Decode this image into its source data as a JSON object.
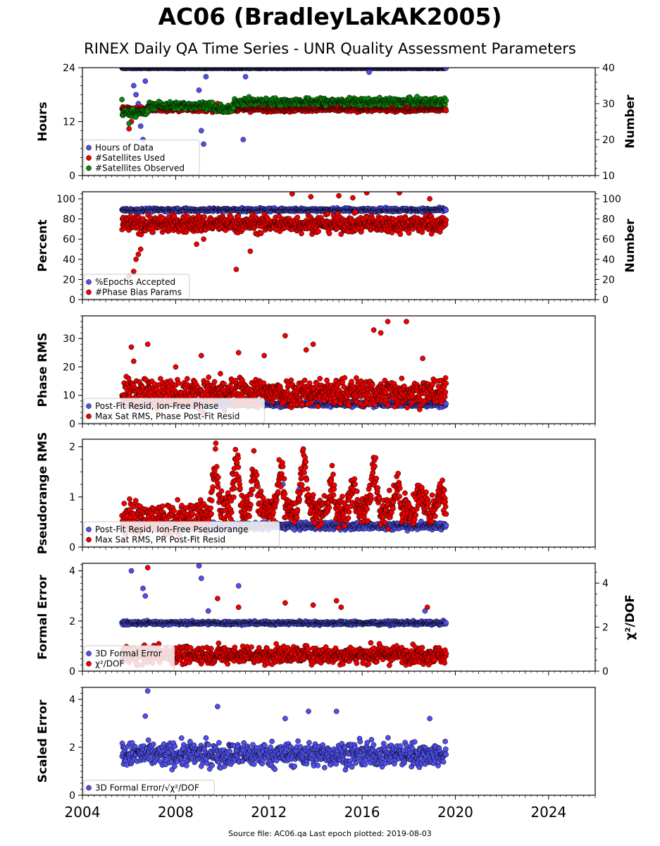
{
  "title": "AC06 (BradleyLakAK2005)",
  "subtitle": "RINEX Daily QA Time Series - UNR Quality Assessment Parameters",
  "footer": "Source file: AC06.qa Last epoch plotted: 2019-08-03",
  "colors": {
    "blue": "#5050ee",
    "red": "#ee0000",
    "green": "#0a8a0a",
    "edge": "#000000"
  },
  "chart_data": [
    {
      "type": "scatter",
      "ylabel": "Hours",
      "ylabel_right": "Number",
      "ylim": [
        0,
        24
      ],
      "ylim_right": [
        10,
        40
      ],
      "yticks": [
        0,
        12,
        24
      ],
      "yticks_right": [
        10,
        20,
        30,
        40
      ],
      "xlim": [
        2004,
        2026
      ],
      "legend": "lower-left",
      "series": [
        {
          "name": "Hours of Data",
          "color": "blue",
          "axis": "left",
          "base": 23.9,
          "noise": 0.05,
          "outliers": [
            [
              2006.2,
              20
            ],
            [
              2006.3,
              18
            ],
            [
              2006.4,
              16
            ],
            [
              2006.5,
              11
            ],
            [
              2006.6,
              8
            ],
            [
              2006.7,
              21
            ],
            [
              2009.0,
              19
            ],
            [
              2009.1,
              10
            ],
            [
              2009.2,
              7
            ],
            [
              2009.3,
              22
            ],
            [
              2010.9,
              8
            ],
            [
              2011.0,
              22
            ],
            [
              2016.3,
              23
            ]
          ]
        },
        {
          "name": "#Satellites Used",
          "color": "red",
          "axis": "right",
          "base": 28.5,
          "noise": 0.5,
          "outliers": [
            [
              2006.0,
              23
            ],
            [
              2006.1,
              25
            ],
            [
              2009.8,
              30
            ]
          ]
        },
        {
          "name": "#Satellites Observed",
          "color": "green",
          "axis": "right",
          "segments": [
            [
              2005.7,
              2006.8,
              27.5
            ],
            [
              2006.8,
              2009.6,
              29.5
            ],
            [
              2009.6,
              2010.5,
              28.5
            ],
            [
              2010.5,
              2019.6,
              30.5
            ]
          ],
          "noise": 0.7,
          "outliers": [
            [
              2006.0,
              24.5
            ]
          ]
        }
      ]
    },
    {
      "type": "scatter",
      "ylabel": "Percent",
      "ylabel_right": "Number",
      "ylim": [
        0,
        107
      ],
      "ylim_right": [
        0,
        107
      ],
      "yticks": [
        0,
        20,
        40,
        60,
        80,
        100
      ],
      "yticks_right": [
        0,
        20,
        40,
        60,
        80,
        100
      ],
      "xlim": [
        2004,
        2026
      ],
      "legend": "lower-left",
      "series": [
        {
          "name": "%Epochs Accepted",
          "color": "blue",
          "axis": "left",
          "base": 89,
          "noise": 1.2,
          "outliers": []
        },
        {
          "name": "#Phase Bias Params",
          "color": "red",
          "axis": "right",
          "base": 75,
          "noise": 6,
          "outliers": [
            [
              2006.0,
              23
            ],
            [
              2006.2,
              28
            ],
            [
              2006.3,
              40
            ],
            [
              2006.4,
              45
            ],
            [
              2006.5,
              50
            ],
            [
              2008.9,
              55
            ],
            [
              2009.2,
              60
            ],
            [
              2010.6,
              30
            ],
            [
              2011.2,
              48
            ],
            [
              2013.0,
              105
            ],
            [
              2013.8,
              102
            ],
            [
              2015.0,
              103
            ],
            [
              2015.6,
              101
            ],
            [
              2016.2,
              106
            ],
            [
              2017.6,
              106
            ],
            [
              2018.9,
              100
            ]
          ]
        }
      ]
    },
    {
      "type": "scatter",
      "ylabel": "Phase RMS",
      "ylim": [
        0,
        38
      ],
      "yticks": [
        0,
        10,
        20,
        30
      ],
      "xlim": [
        2004,
        2026
      ],
      "legend": "lower-left",
      "series": [
        {
          "name": "Post-Fit Resid, Ion-Free Phase",
          "color": "blue",
          "axis": "left",
          "base": 7,
          "noise": 0.7,
          "outliers": []
        },
        {
          "name": "Max Sat RMS, Phase Post-Fit Resid",
          "color": "red",
          "axis": "left",
          "base": 11,
          "noise": 3.5,
          "outliers": [
            [
              2006.1,
              27
            ],
            [
              2006.2,
              22
            ],
            [
              2006.8,
              28
            ],
            [
              2008.0,
              20
            ],
            [
              2009.1,
              24
            ],
            [
              2010.7,
              25
            ],
            [
              2011.8,
              24
            ],
            [
              2012.7,
              31
            ],
            [
              2013.6,
              26
            ],
            [
              2013.9,
              28
            ],
            [
              2016.5,
              33
            ],
            [
              2016.8,
              32
            ],
            [
              2017.1,
              36
            ],
            [
              2017.9,
              36
            ],
            [
              2018.6,
              23
            ]
          ]
        }
      ]
    },
    {
      "type": "scatter",
      "ylabel": "Pseudorange RMS",
      "ylim": [
        0,
        2.15
      ],
      "yticks": [
        0,
        1,
        2
      ],
      "xlim": [
        2004,
        2026
      ],
      "legend": "lower-left",
      "series": [
        {
          "name": "Post-Fit Resid, Ion-Free Pseudorange",
          "color": "blue",
          "axis": "left",
          "base": 0.42,
          "noise": 0.05,
          "outliers": [
            [
              2012.6,
              1.25
            ],
            [
              2013.3,
              1.15
            ],
            [
              2016.0,
              0.9
            ]
          ]
        },
        {
          "name": "Max Sat RMS, PR Post-Fit Resid",
          "color": "red",
          "axis": "left",
          "segments": [
            [
              2005.7,
              2009.5,
              0.58
            ],
            [
              2009.5,
              2019.6,
              0.75
            ]
          ],
          "noise": 0.22,
          "peaks": [
            [
              2009.7,
              1.85
            ],
            [
              2010.6,
              2.05
            ],
            [
              2011.4,
              1.65
            ],
            [
              2012.5,
              1.7
            ],
            [
              2013.5,
              1.85
            ],
            [
              2014.7,
              1.35
            ],
            [
              2015.6,
              1.3
            ],
            [
              2016.5,
              1.75
            ],
            [
              2017.5,
              1.25
            ],
            [
              2018.5,
              1.2
            ],
            [
              2019.4,
              1.2
            ]
          ],
          "outliers": []
        }
      ]
    },
    {
      "type": "scatter",
      "ylabel": "Formal Error",
      "ylabel_right": "χ²/DOF",
      "ylim": [
        0,
        4.3
      ],
      "ylim_right": [
        0,
        4.9
      ],
      "yticks": [
        0,
        2,
        4
      ],
      "yticks_right": [
        0,
        2,
        4
      ],
      "xlim": [
        2004,
        2026
      ],
      "legend": "lower-left",
      "series": [
        {
          "name": "3D Formal Error",
          "color": "blue",
          "axis": "left",
          "base": 1.92,
          "noise": 0.05,
          "outliers": [
            [
              2006.1,
              4.0
            ],
            [
              2006.6,
              3.3
            ],
            [
              2006.7,
              3.0
            ],
            [
              2009.0,
              4.2
            ],
            [
              2009.1,
              3.7
            ],
            [
              2010.7,
              3.4
            ],
            [
              2009.4,
              2.4
            ],
            [
              2018.7,
              2.4
            ]
          ]
        },
        {
          "name": "χ²/DOF",
          "color": "red",
          "axis": "right",
          "base": 0.75,
          "noise": 0.28,
          "outliers": [
            [
              2006.8,
              4.7
            ],
            [
              2009.8,
              3.3
            ],
            [
              2010.7,
              2.9
            ],
            [
              2012.7,
              3.1
            ],
            [
              2013.9,
              3.0
            ],
            [
              2014.9,
              3.2
            ],
            [
              2015.1,
              2.9
            ],
            [
              2018.8,
              2.9
            ]
          ]
        }
      ]
    },
    {
      "type": "scatter",
      "ylabel": "Scaled Error",
      "ylim": [
        0,
        4.5
      ],
      "yticks": [
        0,
        2,
        4
      ],
      "xlim": [
        2004,
        2026
      ],
      "xticks": [
        2004,
        2008,
        2012,
        2016,
        2020,
        2024
      ],
      "legend": "lower-left",
      "series": [
        {
          "name": "3D Formal Error/√χ²/DOF",
          "color": "blue",
          "axis": "left",
          "base": 1.7,
          "noise": 0.35,
          "outliers": [
            [
              2006.8,
              4.35
            ],
            [
              2006.7,
              3.3
            ],
            [
              2009.8,
              3.7
            ],
            [
              2013.7,
              3.5
            ],
            [
              2014.9,
              3.5
            ],
            [
              2012.7,
              3.2
            ],
            [
              2018.9,
              3.2
            ]
          ]
        }
      ]
    }
  ]
}
